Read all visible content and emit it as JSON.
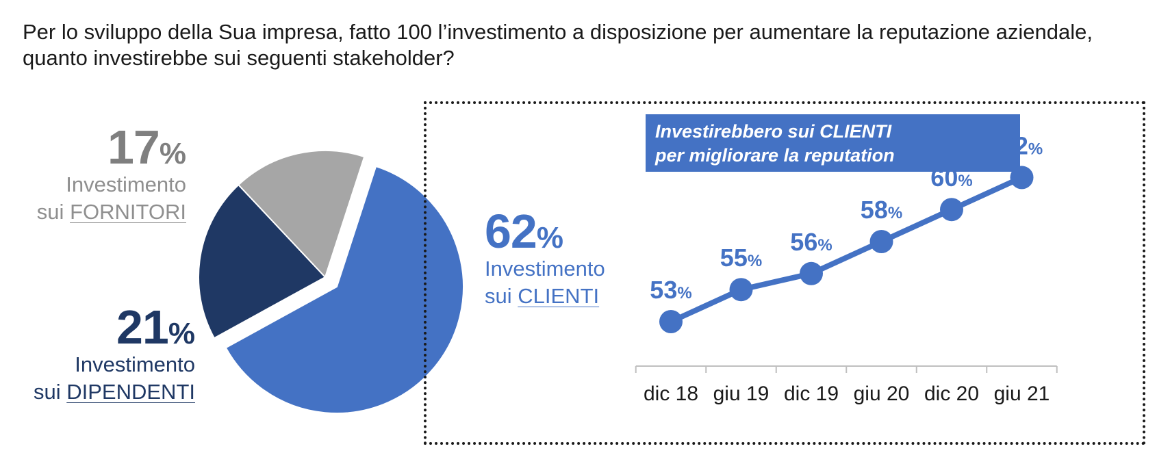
{
  "question": "Per lo sviluppo della Sua impresa, fatto 100 l’investimento a disposizione per aumentare la reputazione aziendale, quanto investirebbe sui seguenti stakeholder?",
  "chart_data": [
    {
      "type": "pie",
      "slices": [
        {
          "key": "clienti",
          "value": 62,
          "pct": "62",
          "sign": "%",
          "line1": "Investimento",
          "prefix": "sui",
          "target": "CLIENTI",
          "color": "#4472c4",
          "exploded": true
        },
        {
          "key": "dipendenti",
          "value": 21,
          "pct": "21",
          "sign": "%",
          "line1": "Investimento",
          "prefix": "sui",
          "target": "DIPENDENTI",
          "color": "#1f3864",
          "exploded": false
        },
        {
          "key": "fornitori",
          "value": 17,
          "pct": "17",
          "sign": "%",
          "line1": "Investimento",
          "prefix": "sui",
          "target": "FORNITORI",
          "color": "#a6a6a6",
          "exploded": false
        }
      ]
    },
    {
      "type": "line",
      "title_line1": "Investirebbero sui CLIENTI",
      "title_line2": "per migliorare la reputation",
      "categories": [
        "dic 18",
        "giu 19",
        "dic 19",
        "giu 20",
        "dic 20",
        "giu 21"
      ],
      "values": [
        53,
        55,
        56,
        58,
        60,
        62
      ],
      "labels": [
        "53",
        "55",
        "56",
        "58",
        "60",
        "62"
      ],
      "unit": "%",
      "color": "#4472c4",
      "ylim": [
        50,
        64
      ]
    }
  ]
}
